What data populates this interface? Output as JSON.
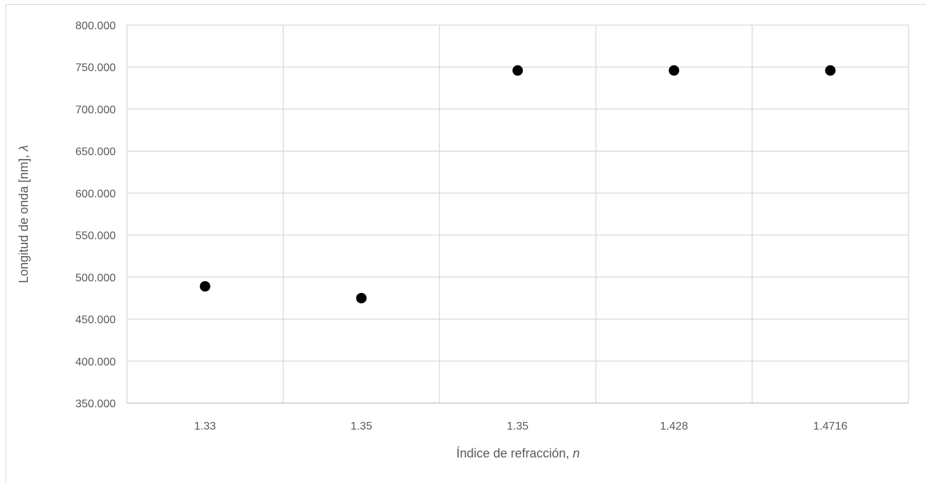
{
  "chart_data": {
    "type": "scatter",
    "title": "",
    "categories": [
      "1.33",
      "1.35",
      "1.35",
      "1.428",
      "1.4716"
    ],
    "values": [
      489,
      475,
      746,
      746,
      746
    ],
    "xlabel_text": "Índice de refracción, ",
    "xlabel_var": "n",
    "ylabel_text": "Longitud de onda [nm], ",
    "ylabel_var": "λ",
    "ylim": [
      350,
      800
    ],
    "yticks": [
      350,
      400,
      450,
      500,
      550,
      600,
      650,
      700,
      750,
      800
    ],
    "ytick_labels": [
      "350.000",
      "400.000",
      "450.000",
      "500.000",
      "550.000",
      "600.000",
      "650.000",
      "700.000",
      "750.000",
      "800.000"
    ],
    "grid": true,
    "legend": "none",
    "marker_color": "#000000"
  }
}
